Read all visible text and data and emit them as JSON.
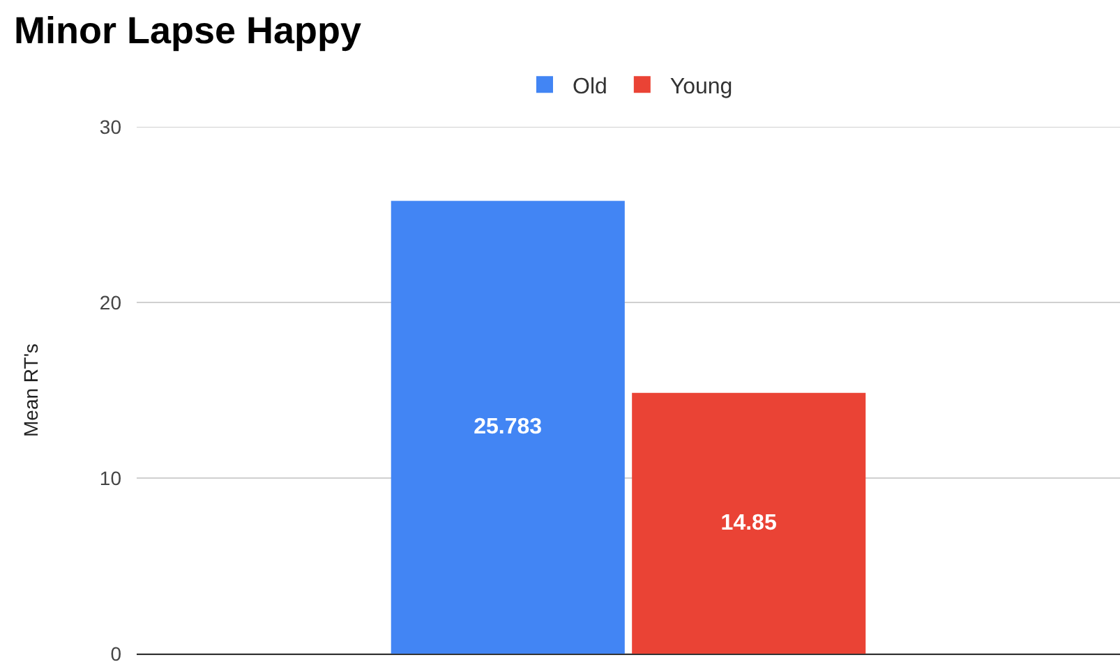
{
  "chart_data": {
    "type": "bar",
    "title": "Minor Lapse Happy",
    "ylabel": "Mean RT's",
    "categories": [
      null
    ],
    "series": [
      {
        "name": "Old",
        "color": "#4285f4",
        "values": [
          25.783
        ]
      },
      {
        "name": "Young",
        "color": "#ea4335",
        "values": [
          14.85
        ]
      }
    ],
    "ylim": [
      0,
      30
    ],
    "yticks": [
      0,
      10,
      20,
      30
    ],
    "grid": "y",
    "legend": "top",
    "data_labels": true
  }
}
